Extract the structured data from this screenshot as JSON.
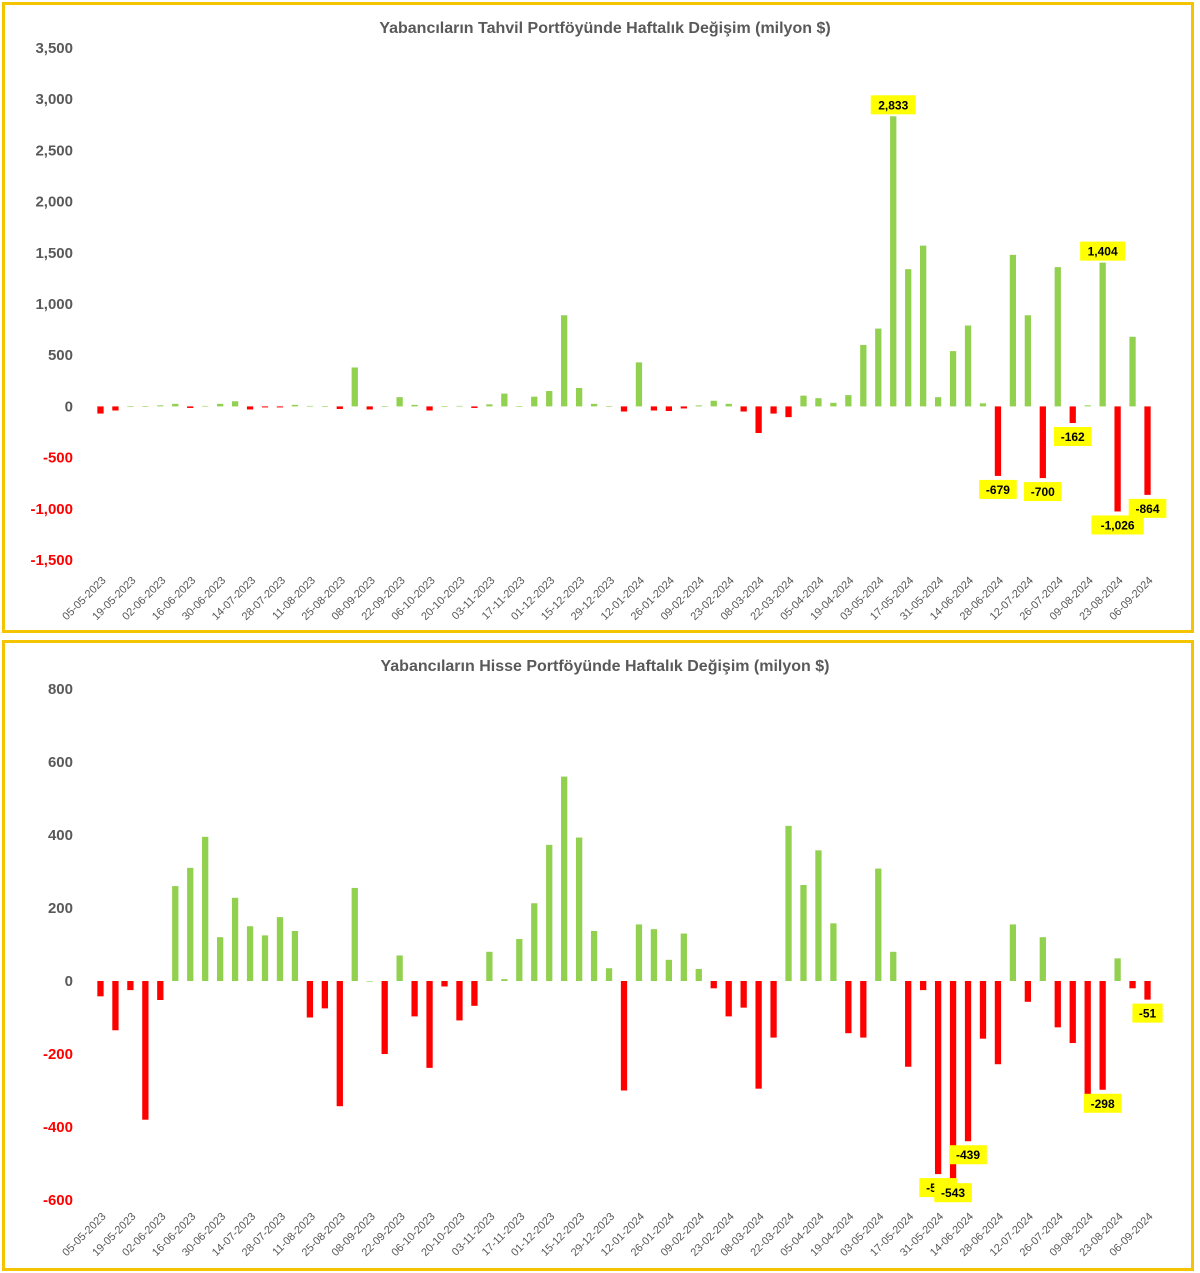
{
  "colors": {
    "positive": "#92D050",
    "negative": "#FF0000",
    "label_bg": "#FFFF00",
    "frame": "#F5C400",
    "text": "#595959"
  },
  "chart_data": [
    {
      "type": "bar",
      "title": "Yabancıların Tahvil Portföyünde Haftalık Değişim (milyon $)",
      "ylim": [
        -1500,
        3500
      ],
      "yticks": [
        3500,
        3000,
        2500,
        2000,
        1500,
        1000,
        500,
        0,
        -500,
        -1000,
        -1500
      ],
      "ytick_labels": [
        "3,500",
        "3,000",
        "2,500",
        "2,000",
        "1,500",
        "1,000",
        "500",
        "0",
        "-500",
        "-1,000",
        "-1,500"
      ],
      "grid": false,
      "legend": "none",
      "x_tick_labels": [
        "05-05-2023",
        "19-05-2023",
        "02-06-2023",
        "16-06-2023",
        "30-06-2023",
        "14-07-2023",
        "28-07-2023",
        "11-08-2023",
        "25-08-2023",
        "08-09-2023",
        "22-09-2023",
        "06-10-2023",
        "20-10-2023",
        "03-11-2023",
        "17-11-2023",
        "01-12-2023",
        "15-12-2023",
        "29-12-2023",
        "12-01-2024",
        "26-01-2024",
        "09-02-2024",
        "23-02-2024",
        "08-03-2024",
        "22-03-2024",
        "05-04-2024",
        "19-04-2024",
        "03-05-2024",
        "17-05-2024",
        "31-05-2024",
        "14-06-2024",
        "28-06-2024",
        "12-07-2024",
        "26-07-2024",
        "09-08-2024",
        "23-08-2024",
        "06-09-2024"
      ],
      "values": [
        -70,
        -40,
        0,
        0,
        10,
        25,
        -15,
        5,
        25,
        50,
        -30,
        -10,
        -10,
        15,
        5,
        0,
        -25,
        380,
        -30,
        0,
        90,
        15,
        -40,
        0,
        5,
        -15,
        20,
        125,
        0,
        95,
        150,
        890,
        180,
        25,
        0,
        -50,
        430,
        -40,
        -45,
        -20,
        10,
        55,
        25,
        -50,
        -260,
        -70,
        -105,
        105,
        80,
        35,
        110,
        600,
        760,
        2833,
        1340,
        1570,
        90,
        540,
        790,
        30,
        -679,
        1480,
        890,
        -700,
        1360,
        -162,
        10,
        1404,
        -1026,
        680,
        -864
      ],
      "data_labels": [
        {
          "index": 53,
          "text": "2,833"
        },
        {
          "index": 60,
          "text": "-679"
        },
        {
          "index": 63,
          "text": "-700"
        },
        {
          "index": 65,
          "text": "-162"
        },
        {
          "index": 67,
          "text": "1,404"
        },
        {
          "index": 68,
          "text": "-1,026"
        },
        {
          "index": 70,
          "text": "-864"
        }
      ]
    },
    {
      "type": "bar",
      "title": "Yabancıların Hisse Portföyünde Haftalık Değişim (milyon $)",
      "ylim": [
        -600,
        800
      ],
      "yticks": [
        800,
        600,
        400,
        200,
        0,
        -200,
        -400,
        -600
      ],
      "ytick_labels": [
        "800",
        "600",
        "400",
        "200",
        "0",
        "-200",
        "-400",
        "-600"
      ],
      "grid": false,
      "legend": "none",
      "x_tick_labels": [
        "05-05-2023",
        "19-05-2023",
        "02-06-2023",
        "16-06-2023",
        "30-06-2023",
        "14-07-2023",
        "28-07-2023",
        "11-08-2023",
        "25-08-2023",
        "08-09-2023",
        "22-09-2023",
        "06-10-2023",
        "20-10-2023",
        "03-11-2023",
        "17-11-2023",
        "01-12-2023",
        "15-12-2023",
        "29-12-2023",
        "12-01-2024",
        "26-01-2024",
        "09-02-2024",
        "23-02-2024",
        "08-03-2024",
        "22-03-2024",
        "05-04-2024",
        "19-04-2024",
        "03-05-2024",
        "17-05-2024",
        "31-05-2024",
        "14-06-2024",
        "28-06-2024",
        "12-07-2024",
        "26-07-2024",
        "09-08-2024",
        "23-08-2024",
        "06-09-2024"
      ],
      "values": [
        -42,
        -135,
        -25,
        -380,
        -52,
        260,
        310,
        395,
        120,
        228,
        150,
        125,
        175,
        137,
        -100,
        -75,
        -343,
        255,
        0,
        -200,
        70,
        -97,
        -238,
        -15,
        -108,
        -68,
        80,
        5,
        115,
        213,
        373,
        560,
        393,
        137,
        35,
        -300,
        155,
        142,
        58,
        130,
        33,
        -20,
        -97,
        -73,
        -295,
        -155,
        425,
        263,
        358,
        158,
        -143,
        -155,
        308,
        80,
        -235,
        -25,
        -529,
        -543,
        -439,
        -158,
        -228,
        155,
        -57,
        120,
        -127,
        -170,
        -325,
        -298,
        62,
        -20,
        -51
      ],
      "data_labels": [
        {
          "index": 56,
          "text": "-529"
        },
        {
          "index": 57,
          "text": "-543"
        },
        {
          "index": 58,
          "text": "-439"
        },
        {
          "index": 67,
          "text": "-298"
        },
        {
          "index": 70,
          "text": "-51"
        }
      ]
    }
  ]
}
